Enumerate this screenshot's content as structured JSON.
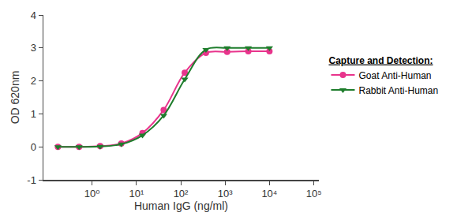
{
  "chart_data": {
    "type": "scatter",
    "x_label": "Human IgG (ng/ml)",
    "y_label": "OD 620nm",
    "legend_title": "Capture and Detection:",
    "x": [
      0.17,
      0.51,
      1.52,
      4.57,
      13.7,
      41.2,
      123,
      370,
      1111,
      3333,
      10000
    ],
    "series": [
      {
        "name": "Goat Anti-Human",
        "color": "#e8348c",
        "marker": "circle",
        "line_style": "solid",
        "values": [
          0,
          0,
          0.02,
          0.1,
          0.42,
          1.12,
          2.25,
          2.85,
          2.88,
          2.9,
          2.9
        ]
      },
      {
        "name": "Rabbit Anti-Human",
        "color": "#1e7d2c",
        "marker": "triangle-down",
        "line_style": "solid",
        "values": [
          0,
          0,
          0.01,
          0.08,
          0.35,
          0.95,
          2.05,
          2.95,
          3.0,
          3.0,
          3.0
        ]
      }
    ],
    "log": "x",
    "xlim": [
      0.08,
      130000
    ],
    "xticks": [
      {
        "value": 1,
        "label": "10⁰"
      },
      {
        "value": 10,
        "label": "10¹"
      },
      {
        "value": 100,
        "label": "10²"
      },
      {
        "value": 1000,
        "label": "10³"
      },
      {
        "value": 10000,
        "label": "10⁴"
      },
      {
        "value": 100000,
        "label": "10⁵"
      }
    ],
    "ylim": [
      -1,
      4
    ],
    "yticks": [
      -1,
      0,
      1,
      2,
      3,
      4
    ],
    "grid": false,
    "legend": "right"
  }
}
